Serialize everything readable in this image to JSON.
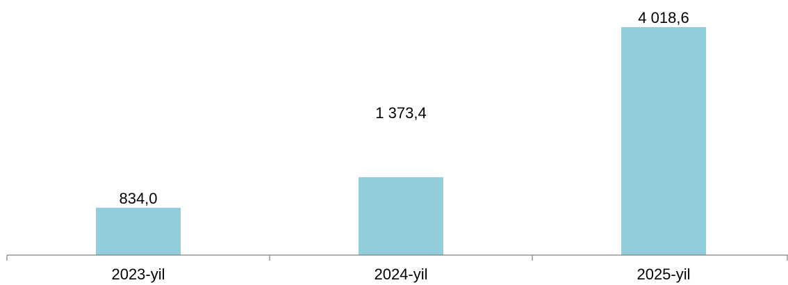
{
  "chart_data": {
    "type": "bar",
    "categories": [
      "2023-yil",
      "2024-yil",
      "2025-yil"
    ],
    "values": [
      834.0,
      1373.4,
      4018.6
    ],
    "value_labels": [
      "834,0",
      "1 373,4",
      "4 018,6"
    ],
    "ylim": [
      0,
      4018.6
    ],
    "grid": false,
    "bar_color": "#92CDDC",
    "axis_color": "#808080"
  }
}
